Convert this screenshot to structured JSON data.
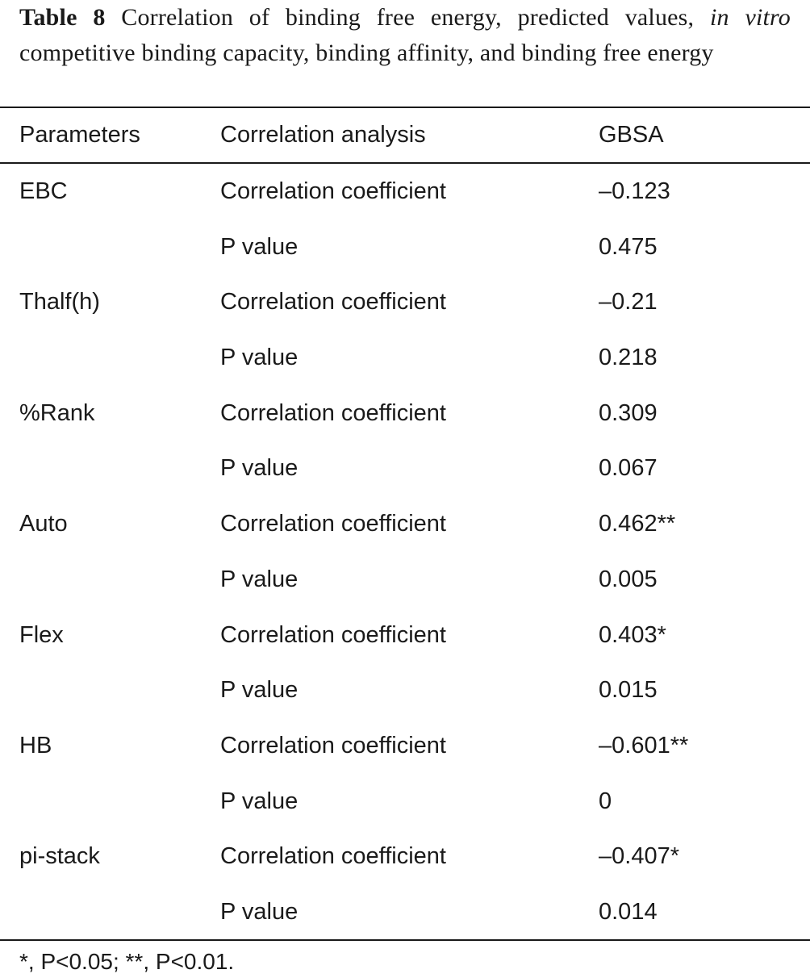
{
  "caption": {
    "label": "Table 8",
    "text_before_italic": " Correlation of binding free energy, predicted values, ",
    "italic": "in vitro",
    "text_after_italic": " competitive binding capacity, binding affinity, and binding free energy"
  },
  "table": {
    "headers": [
      "Parameters",
      "Correlation analysis",
      "GBSA"
    ],
    "rows": [
      {
        "parameter": "EBC",
        "analysis": "Correlation coefficient",
        "gbsa": "–0.123"
      },
      {
        "parameter": "",
        "analysis": "P value",
        "gbsa": "0.475"
      },
      {
        "parameter": "Thalf(h)",
        "analysis": "Correlation coefficient",
        "gbsa": "–0.21"
      },
      {
        "parameter": "",
        "analysis": "P value",
        "gbsa": "0.218"
      },
      {
        "parameter": "%Rank",
        "analysis": "Correlation coefficient",
        "gbsa": "0.309"
      },
      {
        "parameter": "",
        "analysis": "P value",
        "gbsa": "0.067"
      },
      {
        "parameter": "Auto",
        "analysis": "Correlation coefficient",
        "gbsa": "0.462**"
      },
      {
        "parameter": "",
        "analysis": "P value",
        "gbsa": "0.005"
      },
      {
        "parameter": "Flex",
        "analysis": "Correlation coefficient",
        "gbsa": "0.403*"
      },
      {
        "parameter": "",
        "analysis": "P value",
        "gbsa": "0.015"
      },
      {
        "parameter": "HB",
        "analysis": "Correlation coefficient",
        "gbsa": "–0.601**"
      },
      {
        "parameter": "",
        "analysis": "P value",
        "gbsa": "0"
      },
      {
        "parameter": "pi-stack",
        "analysis": "Correlation coefficient",
        "gbsa": "–0.407*"
      },
      {
        "parameter": "",
        "analysis": "P value",
        "gbsa": "0.014"
      }
    ]
  },
  "footnote": "*, P<0.05; **, P<0.01."
}
